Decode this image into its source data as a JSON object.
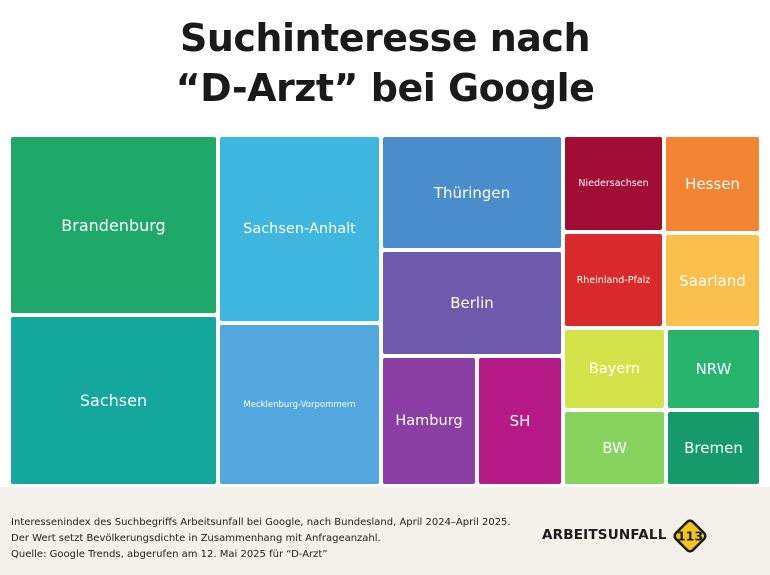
{
  "title_lines": [
    "Suchinteresse nach",
    "“D-Arzt” bei Google"
  ],
  "chart_data": {
    "type": "treemap",
    "title": "Suchinteresse nach “D-Arzt” bei Google",
    "items": [
      {
        "label": "Brandenburg",
        "color": "#1ea86a"
      },
      {
        "label": "Sachsen",
        "color": "#13a79e"
      },
      {
        "label": "Sachsen-Anhalt",
        "color": "#3fb6e0"
      },
      {
        "label": "Mecklenburg-Vorpommern",
        "color": "#52a8de"
      },
      {
        "label": "Thüringen",
        "color": "#4a8dcc"
      },
      {
        "label": "Berlin",
        "color": "#6e5aad"
      },
      {
        "label": "Hamburg",
        "color": "#8b3fa4"
      },
      {
        "label": "SH",
        "color": "#b61a86"
      },
      {
        "label": "Niedersachsen",
        "color": "#a10d35"
      },
      {
        "label": "Rheinland-Pfalz",
        "color": "#d82a2a"
      },
      {
        "label": "Hessen",
        "color": "#f28433"
      },
      {
        "label": "Saarland",
        "color": "#fbbf4c"
      },
      {
        "label": "Bayern",
        "color": "#d2e44a"
      },
      {
        "label": "BW",
        "color": "#86d45d"
      },
      {
        "label": "NRW",
        "color": "#27b46c"
      },
      {
        "label": "Bremen",
        "color": "#179a6a"
      }
    ]
  },
  "footer": {
    "notes": [
      "Interessenindex des Suchbegriffs Arbeitsunfall bei Google, nach Bundesland, April 2024–April 2025.",
      "Der Wert setzt Bevölkerungsdichte in Zusammenhang mit Anfrageanzahl.",
      "Quelle: Google Trends, abgerufen am 12. Mai 2025 für “D-Arzt”"
    ],
    "brand": "ARBEITSUNFALL",
    "badge_number": "113",
    "badge_color": "#f5c518"
  }
}
